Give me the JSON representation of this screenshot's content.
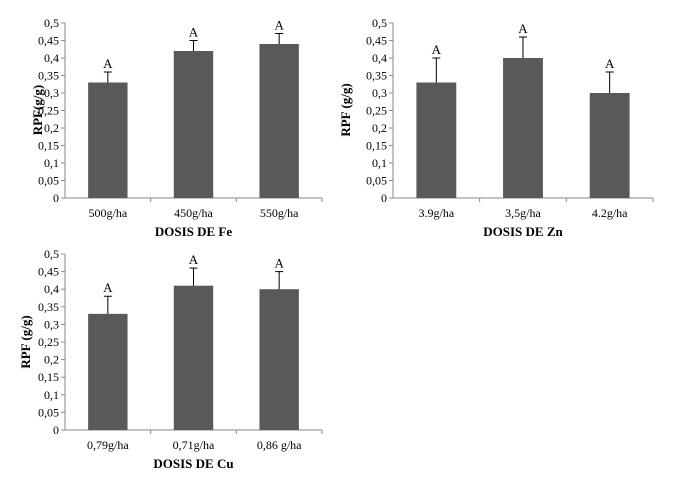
{
  "chart_data": [
    {
      "type": "bar",
      "xlabel": "DOSIS DE Fe",
      "ylabel": "RPF(g/g)",
      "ylim": [
        0,
        0.5
      ],
      "yticks": [
        "0",
        "0,05",
        "0,1",
        "0,15",
        "0,2",
        "0,25",
        "0,3",
        "0,35",
        "0,4",
        "0,45",
        "0,5"
      ],
      "categories": [
        "500g/ha",
        "450g/ha",
        "550g/ha"
      ],
      "values": [
        0.33,
        0.42,
        0.44
      ],
      "errors": [
        0.03,
        0.03,
        0.03
      ],
      "letters": [
        "A",
        "A",
        "A"
      ],
      "bar_color": "#595959"
    },
    {
      "type": "bar",
      "xlabel": "DOSIS DE Zn",
      "ylabel": "RPF (g/g)",
      "ylim": [
        0,
        0.5
      ],
      "yticks": [
        "0",
        "0,05",
        "0,1",
        "0,15",
        "0,2",
        "0,25",
        "0,3",
        "0,35",
        "0,4",
        "0,45",
        "0,5"
      ],
      "categories": [
        "3.9g/ha",
        "3,5g/ha",
        "4.2g/ha"
      ],
      "values": [
        0.33,
        0.4,
        0.3
      ],
      "errors": [
        0.07,
        0.06,
        0.06
      ],
      "letters": [
        "A",
        "A",
        "A"
      ],
      "bar_color": "#595959"
    },
    {
      "type": "bar",
      "xlabel": "DOSIS DE Cu",
      "ylabel": "RPF (g/g)",
      "ylim": [
        0,
        0.5
      ],
      "yticks": [
        "0",
        "0,05",
        "0,1",
        "0,15",
        "0,2",
        "0,25",
        "0,3",
        "0,35",
        "0,4",
        "0,45",
        "0,5"
      ],
      "categories": [
        "0,79g/ha",
        "0,71g/ha",
        "0,86 g/ha"
      ],
      "values": [
        0.33,
        0.41,
        0.4
      ],
      "errors": [
        0.05,
        0.05,
        0.05
      ],
      "letters": [
        "A",
        "A",
        "A"
      ],
      "bar_color": "#595959"
    }
  ]
}
